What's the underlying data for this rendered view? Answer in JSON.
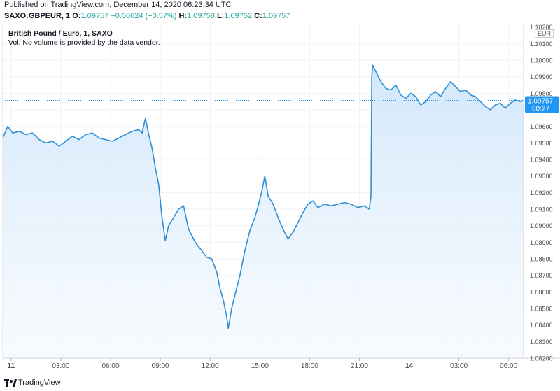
{
  "header": {
    "published": "Published on TradingView.com, December 14, 2020 06:23:34 UTC",
    "symbol_line": "SAXO:GBPEUR, 1",
    "open_label": "O:",
    "open": "1.09757",
    "change": "+0.00624 (+0.57%)",
    "high_label": "H:",
    "high": "1.09758",
    "low_label": "L:",
    "low": "1.09752",
    "close_label": "C:",
    "close": "1.09757"
  },
  "legend": {
    "title": "British Pound / Euro, 1, SAXO",
    "volume_note": "Vol: No volume is provided by the data vendor."
  },
  "price_axis": {
    "currency": "EUR",
    "current_price": "1.09757",
    "countdown": "00:27"
  },
  "footer": {
    "brand": "TradingView"
  },
  "colors": {
    "line": "#2d8fd8",
    "fill_top": "#cfe6fa",
    "fill_bottom": "#f4f9fe",
    "price_label_bg": "#2196f3",
    "change_positive": "#26a69a"
  },
  "chart_data": {
    "type": "area",
    "title": "British Pound / Euro, 1, SAXO",
    "xlabel": "",
    "ylabel": "",
    "ylim": [
      1.082,
      1.1022
    ],
    "y_ticks": [
      "1.08200",
      "1.08300",
      "1.08400",
      "1.08500",
      "1.08600",
      "1.08700",
      "1.08800",
      "1.08900",
      "1.09000",
      "1.09100",
      "1.09200",
      "1.09300",
      "1.09400",
      "1.09500",
      "1.09600",
      "1.09700",
      "1.09800",
      "1.09900",
      "1.10000",
      "1.10100",
      "1.10200"
    ],
    "x_ticks": [
      {
        "label": "11",
        "x": 0.5
      },
      {
        "label": "03:00",
        "x": 3.5
      },
      {
        "label": "06:00",
        "x": 6.5
      },
      {
        "label": "09:00",
        "x": 9.5
      },
      {
        "label": "12:00",
        "x": 12.5
      },
      {
        "label": "15:00",
        "x": 15.5
      },
      {
        "label": "18:00",
        "x": 18.5
      },
      {
        "label": "21:00",
        "x": 21.5
      },
      {
        "label": "14",
        "x": 24.5
      },
      {
        "label": "03:00",
        "x": 27.5
      },
      {
        "label": "06:00",
        "x": 30.5
      }
    ],
    "x_unit": "hours since chart start (Dec 10, 23:30 UTC)",
    "x_range": [
      0,
      31.4
    ],
    "series": [
      {
        "points": [
          [
            0.0,
            1.0953
          ],
          [
            0.3,
            1.096
          ],
          [
            0.6,
            1.0956
          ],
          [
            1.0,
            1.0957
          ],
          [
            1.4,
            1.0955
          ],
          [
            1.8,
            1.0956
          ],
          [
            2.2,
            1.0952
          ],
          [
            2.6,
            1.095
          ],
          [
            3.0,
            1.0951
          ],
          [
            3.4,
            1.0948
          ],
          [
            3.8,
            1.0951
          ],
          [
            4.2,
            1.0954
          ],
          [
            4.6,
            1.0952
          ],
          [
            5.0,
            1.0955
          ],
          [
            5.4,
            1.0956
          ],
          [
            5.8,
            1.0953
          ],
          [
            6.2,
            1.0952
          ],
          [
            6.6,
            1.0951
          ],
          [
            7.0,
            1.0953
          ],
          [
            7.4,
            1.0955
          ],
          [
            7.8,
            1.0957
          ],
          [
            8.2,
            1.0958
          ],
          [
            8.4,
            1.0956
          ],
          [
            8.6,
            1.0965
          ],
          [
            8.8,
            1.0955
          ],
          [
            9.0,
            1.0947
          ],
          [
            9.2,
            1.0935
          ],
          [
            9.4,
            1.0925
          ],
          [
            9.6,
            1.0905
          ],
          [
            9.8,
            1.0891
          ],
          [
            10.0,
            1.09
          ],
          [
            10.3,
            1.0905
          ],
          [
            10.6,
            1.091
          ],
          [
            10.9,
            1.0912
          ],
          [
            11.2,
            1.0898
          ],
          [
            11.6,
            1.089
          ],
          [
            12.0,
            1.0885
          ],
          [
            12.3,
            1.0881
          ],
          [
            12.6,
            1.088
          ],
          [
            12.9,
            1.0872
          ],
          [
            13.1,
            1.0862
          ],
          [
            13.3,
            1.0855
          ],
          [
            13.5,
            1.0845
          ],
          [
            13.6,
            1.0838
          ],
          [
            13.8,
            1.085
          ],
          [
            14.0,
            1.0858
          ],
          [
            14.3,
            1.087
          ],
          [
            14.6,
            1.0885
          ],
          [
            14.9,
            1.0897
          ],
          [
            15.2,
            1.0905
          ],
          [
            15.4,
            1.0912
          ],
          [
            15.6,
            1.092
          ],
          [
            15.8,
            1.093
          ],
          [
            16.0,
            1.0918
          ],
          [
            16.3,
            1.0913
          ],
          [
            16.6,
            1.0905
          ],
          [
            16.9,
            1.0898
          ],
          [
            17.2,
            1.0892
          ],
          [
            17.5,
            1.0896
          ],
          [
            17.8,
            1.0902
          ],
          [
            18.1,
            1.0908
          ],
          [
            18.4,
            1.0913
          ],
          [
            18.7,
            1.0915
          ],
          [
            19.0,
            1.0911
          ],
          [
            19.4,
            1.0913
          ],
          [
            19.8,
            1.0912
          ],
          [
            20.2,
            1.0913
          ],
          [
            20.6,
            1.0914
          ],
          [
            21.0,
            1.0913
          ],
          [
            21.4,
            1.0911
          ],
          [
            21.8,
            1.0912
          ],
          [
            22.1,
            1.091
          ],
          [
            22.2,
            1.0918
          ],
          [
            22.25,
            1.099
          ],
          [
            22.3,
            1.0997
          ],
          [
            22.5,
            1.0993
          ],
          [
            22.8,
            1.0987
          ],
          [
            23.1,
            1.0983
          ],
          [
            23.4,
            1.0982
          ],
          [
            23.7,
            1.0985
          ],
          [
            24.0,
            1.0979
          ],
          [
            24.3,
            1.0977
          ],
          [
            24.6,
            1.098
          ],
          [
            24.9,
            1.0978
          ],
          [
            25.2,
            1.0973
          ],
          [
            25.5,
            1.0975
          ],
          [
            25.8,
            1.0979
          ],
          [
            26.1,
            1.0981
          ],
          [
            26.4,
            1.0978
          ],
          [
            26.7,
            1.0983
          ],
          [
            27.0,
            1.0987
          ],
          [
            27.3,
            1.0984
          ],
          [
            27.6,
            1.0981
          ],
          [
            27.9,
            1.0982
          ],
          [
            28.2,
            1.0979
          ],
          [
            28.5,
            1.0978
          ],
          [
            28.8,
            1.0975
          ],
          [
            29.1,
            1.0972
          ],
          [
            29.4,
            1.097
          ],
          [
            29.7,
            1.0973
          ],
          [
            30.0,
            1.0974
          ],
          [
            30.3,
            1.0971
          ],
          [
            30.6,
            1.0974
          ],
          [
            30.9,
            1.0976
          ],
          [
            31.2,
            1.0975
          ],
          [
            31.4,
            1.09757
          ]
        ]
      }
    ],
    "last_price": 1.09757,
    "grid": true,
    "legend_position": "top-left"
  }
}
